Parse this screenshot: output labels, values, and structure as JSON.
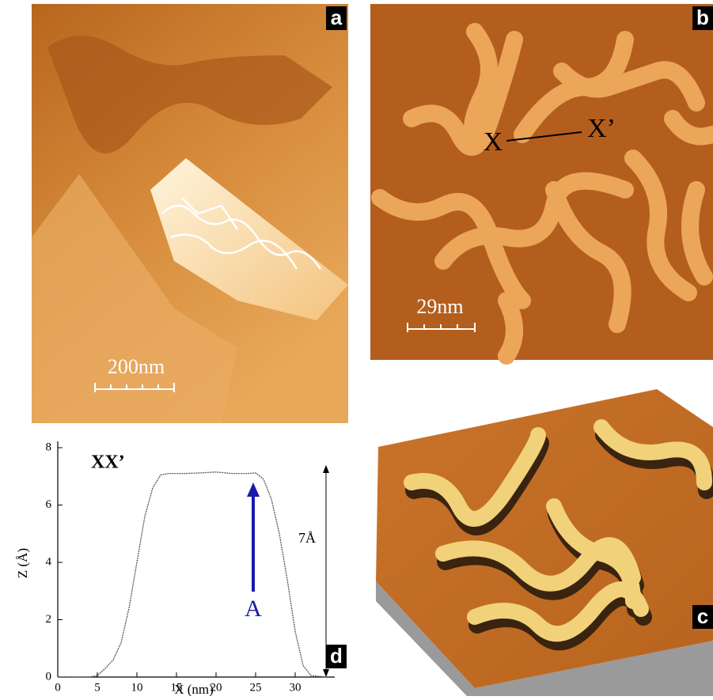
{
  "panels": {
    "a": {
      "label": "a",
      "scale_bar": "200nm"
    },
    "b": {
      "label": "b",
      "scale_bar": "29nm",
      "start_marker": "X",
      "end_marker": "X’"
    },
    "c": {
      "label": "c"
    }
  },
  "chart_data": {
    "type": "line",
    "label": "d",
    "annotation": "XX’",
    "arrow_label": "A",
    "height_label": "7Å",
    "xlabel": "X (nm)",
    "ylabel": "Z (Å)",
    "x": [
      0,
      2,
      4,
      5,
      6,
      7,
      8,
      9,
      10,
      11,
      12,
      13,
      14,
      16,
      18,
      20,
      22,
      24,
      25,
      26,
      27,
      28,
      29,
      30,
      31,
      32,
      34
    ],
    "series": [
      {
        "color": "#555555",
        "values": [
          0,
          0,
          0,
          0.05,
          0.3,
          0.6,
          1.2,
          2.4,
          4.0,
          5.6,
          6.6,
          7.05,
          7.1,
          7.1,
          7.12,
          7.15,
          7.1,
          7.1,
          7.12,
          6.9,
          6.2,
          5.0,
          3.4,
          1.6,
          0.4,
          0.05,
          0
        ]
      }
    ],
    "xlim": [
      0,
      35
    ],
    "ylim": [
      0,
      8
    ],
    "xticks": [
      0,
      5,
      10,
      15,
      20,
      25,
      30
    ],
    "yticks": [
      0,
      2,
      4,
      6,
      8
    ]
  }
}
